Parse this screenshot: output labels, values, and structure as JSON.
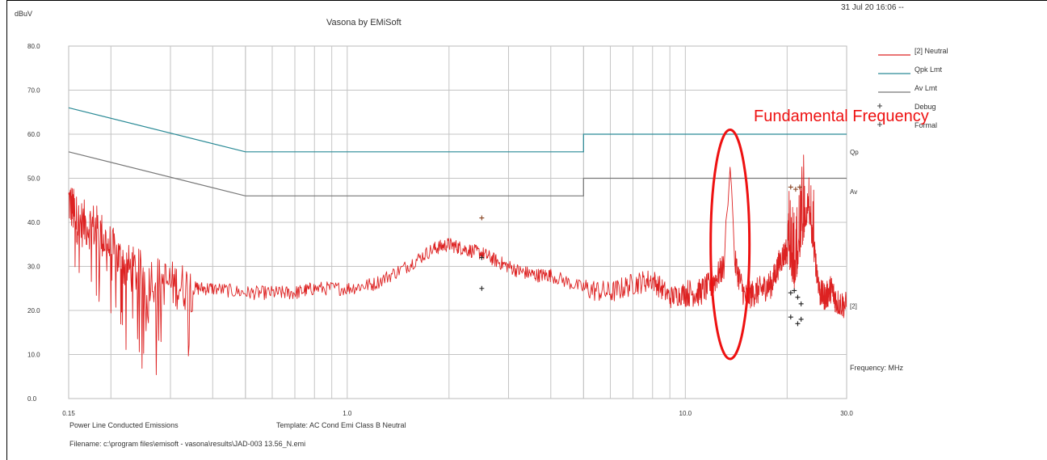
{
  "header": {
    "title": "Vasona by EMiSoft",
    "timestamp": "31 Jul 20 16:06 --",
    "unit_label": "dBuV"
  },
  "chart_data": {
    "type": "line",
    "title": "Vasona by EMiSoft",
    "ylabel": "dBuV",
    "xlabel": "Frequency: MHz",
    "xscale": "log",
    "xlim": [
      0.15,
      30.0
    ],
    "ylim": [
      0.0,
      80.0
    ],
    "grid": true,
    "legend_position": "right",
    "y_ticks": [
      "0.0",
      "10.0",
      "20.0",
      "30.0",
      "40.0",
      "50.0",
      "60.0",
      "70.0",
      "80.0"
    ],
    "x_ticks": [
      {
        "value": 0.15,
        "label": "0.15"
      },
      {
        "value": 1.0,
        "label": "1.0"
      },
      {
        "value": 10.0,
        "label": "10.0"
      },
      {
        "value": 30.0,
        "label": "30.0"
      }
    ],
    "legend": [
      {
        "name": "[2] Neutral",
        "color": "#dd2222",
        "marker": "line"
      },
      {
        "name": "Qpk Lmt",
        "color": "#2a8a96",
        "marker": "line"
      },
      {
        "name": "Av Lmt",
        "color": "#777777",
        "marker": "line"
      },
      {
        "name": "Debug",
        "color": "#444444",
        "marker": "plus"
      },
      {
        "name": "Formal",
        "color": "#444444",
        "marker": "plus"
      }
    ],
    "series": [
      {
        "name": "Qpk Lmt",
        "color": "#2a8a96",
        "x": [
          0.15,
          0.5,
          0.5,
          5.0,
          5.0,
          30.0
        ],
        "y": [
          66.0,
          56.0,
          56.0,
          56.0,
          60.0,
          60.0
        ]
      },
      {
        "name": "Av Lmt",
        "color": "#777777",
        "x": [
          0.15,
          0.5,
          0.5,
          5.0,
          5.0,
          30.0
        ],
        "y": [
          56.0,
          46.0,
          46.0,
          46.0,
          50.0,
          50.0
        ]
      },
      {
        "name": "[2] Neutral",
        "color": "#dd2222",
        "x": [
          0.15,
          0.16,
          0.18,
          0.2,
          0.22,
          0.25,
          0.3,
          0.35,
          0.4,
          0.5,
          0.6,
          0.7,
          0.8,
          1.0,
          1.2,
          1.5,
          1.8,
          2.0,
          2.2,
          2.5,
          2.8,
          3.2,
          3.6,
          4.0,
          5.0,
          6.0,
          7.0,
          8.0,
          9.0,
          10.0,
          11.0,
          12.0,
          13.0,
          13.56,
          14.0,
          15.0,
          16.0,
          17.0,
          18.0,
          19.0,
          20.0,
          21.0,
          22.0,
          23.0,
          24.0,
          25.0,
          26.0,
          27.0,
          28.0,
          30.0
        ],
        "y": [
          45,
          40,
          39,
          34,
          30,
          28,
          26,
          25,
          25,
          24,
          24,
          24,
          25,
          25,
          26,
          30,
          34,
          35,
          34,
          33,
          31,
          29,
          28,
          28,
          25,
          24,
          26,
          27,
          23,
          24,
          24,
          26,
          30,
          55,
          31,
          23,
          24,
          25,
          26,
          31,
          34,
          28,
          36,
          44,
          34,
          24,
          23,
          25,
          22,
          21
        ]
      }
    ],
    "markers": [
      {
        "x": 2.5,
        "y": 41.0,
        "color": "#884422"
      },
      {
        "x": 2.5,
        "y": 32.0
      },
      {
        "x": 2.5,
        "y": 25.0
      },
      {
        "x": 20.5,
        "y": 48.0,
        "color": "#884422"
      },
      {
        "x": 21.2,
        "y": 47.5,
        "color": "#884422"
      },
      {
        "x": 21.8,
        "y": 48.0,
        "color": "#884422"
      },
      {
        "x": 20.5,
        "y": 24.0
      },
      {
        "x": 21.0,
        "y": 24.5
      },
      {
        "x": 21.5,
        "y": 23.0
      },
      {
        "x": 22.0,
        "y": 21.5
      },
      {
        "x": 20.5,
        "y": 18.5
      },
      {
        "x": 21.5,
        "y": 17.0
      },
      {
        "x": 22.0,
        "y": 18.0
      }
    ],
    "limit_labels": [
      {
        "text": "Qp",
        "y": 56.0
      },
      {
        "text": "Av",
        "y": 47.0
      },
      {
        "text": "[2]",
        "y": 21.0
      }
    ],
    "annotation": {
      "text": "Fundamental Frequency",
      "color": "#ee1111",
      "center_x": 13.56,
      "y_top": 61.0,
      "y_bottom": 9.0
    }
  },
  "footer": {
    "description": "Power Line Conducted Emissions",
    "template": "Template: AC Cond Emi Class B Neutral",
    "filename": "Filename: c:\\program files\\emisoft - vasona\\results\\JAD-003 13.56_N.emi"
  }
}
